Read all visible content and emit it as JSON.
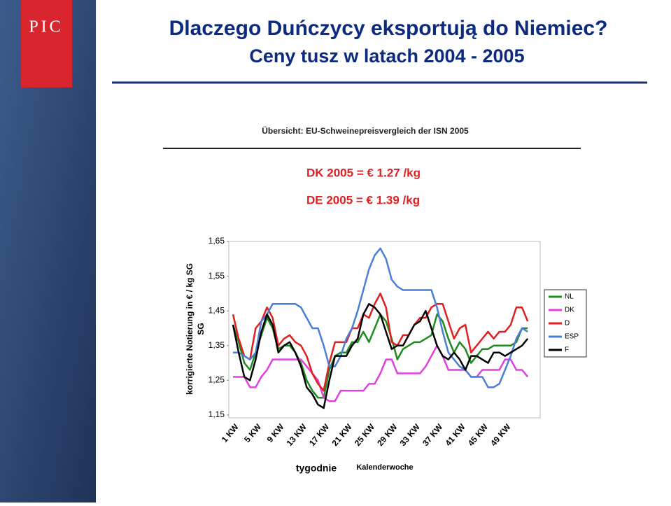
{
  "slide": {
    "logo": "PIC",
    "title": "Dlaczego Duńczycy eksportują do Niemiec?",
    "subtitle": "Ceny tusz w latach 2004 - 2005"
  },
  "chart_data": {
    "type": "line",
    "title": "Übersicht: EU-Schweinepreisvergleich der ISN 2005",
    "annotations": [
      "DK 2005 = € 1.27 /kg",
      "DE 2005 = € 1.39 /kg"
    ],
    "y_label": "korrigierte Notierung in € / kg SG",
    "y_label_2": "SG",
    "x_label": "Kalenderwoche",
    "x_label_pl": "tygodnie",
    "categories": [
      "1 KW",
      null,
      null,
      null,
      "5 KW",
      null,
      null,
      null,
      "9 KW",
      null,
      null,
      null,
      "13 KW",
      null,
      null,
      null,
      "17 KW",
      null,
      null,
      null,
      "21 KW",
      null,
      null,
      null,
      "25 KW",
      null,
      null,
      null,
      "29 KW",
      null,
      null,
      null,
      "33 KW",
      null,
      null,
      null,
      "37 KW",
      null,
      null,
      null,
      "41 KW",
      null,
      null,
      null,
      "45 KW",
      null,
      null,
      null,
      "49 KW",
      null,
      null,
      null,
      null
    ],
    "ylim": [
      1.15,
      1.65
    ],
    "yticks": [
      {
        "value": 1.15,
        "label": "1,15"
      },
      {
        "value": 1.25,
        "label": "1,25"
      },
      {
        "value": 1.35,
        "label": "1,35"
      },
      {
        "value": 1.45,
        "label": "1,45"
      },
      {
        "value": 1.55,
        "label": "1,55"
      },
      {
        "value": 1.65,
        "label": "1,65"
      }
    ],
    "grid": false,
    "legend": "right",
    "series": [
      {
        "name": "NL",
        "color": "#1e8c1e",
        "values": [
          1.41,
          1.36,
          1.3,
          1.28,
          1.33,
          1.38,
          1.43,
          1.4,
          1.34,
          1.35,
          1.35,
          1.33,
          1.3,
          1.25,
          1.22,
          1.2,
          1.2,
          1.28,
          1.32,
          1.33,
          1.33,
          1.36,
          1.36,
          1.39,
          1.36,
          1.4,
          1.44,
          1.42,
          1.37,
          1.31,
          1.34,
          1.35,
          1.36,
          1.36,
          1.37,
          1.38,
          1.44,
          1.42,
          1.37,
          1.33,
          1.36,
          1.34,
          1.3,
          1.32,
          1.34,
          1.34,
          1.35,
          1.35,
          1.35,
          1.35,
          1.36,
          1.4,
          1.4
        ]
      },
      {
        "name": "DK",
        "color": "#e040e0",
        "values": [
          1.26,
          1.26,
          1.26,
          1.23,
          1.23,
          1.26,
          1.28,
          1.31,
          1.31,
          1.31,
          1.31,
          1.31,
          1.31,
          1.29,
          1.27,
          1.25,
          1.2,
          1.19,
          1.19,
          1.22,
          1.22,
          1.22,
          1.22,
          1.22,
          1.24,
          1.24,
          1.27,
          1.31,
          1.31,
          1.27,
          1.27,
          1.27,
          1.27,
          1.27,
          1.29,
          1.32,
          1.35,
          1.32,
          1.28,
          1.28,
          1.28,
          1.28,
          1.26,
          1.26,
          1.28,
          1.28,
          1.28,
          1.28,
          1.31,
          1.31,
          1.28,
          1.28,
          1.26
        ]
      },
      {
        "name": "D",
        "color": "#e02020",
        "values": [
          1.44,
          1.37,
          1.32,
          1.31,
          1.4,
          1.42,
          1.46,
          1.43,
          1.35,
          1.37,
          1.38,
          1.36,
          1.35,
          1.32,
          1.27,
          1.24,
          1.22,
          1.3,
          1.36,
          1.36,
          1.36,
          1.4,
          1.4,
          1.44,
          1.43,
          1.47,
          1.5,
          1.46,
          1.36,
          1.35,
          1.38,
          1.38,
          1.41,
          1.43,
          1.43,
          1.46,
          1.47,
          1.47,
          1.42,
          1.37,
          1.4,
          1.41,
          1.33,
          1.35,
          1.37,
          1.39,
          1.37,
          1.39,
          1.39,
          1.41,
          1.46,
          1.46,
          1.42
        ]
      },
      {
        "name": "ESP",
        "color": "#4a7fd8",
        "values": [
          1.33,
          1.33,
          1.32,
          1.31,
          1.33,
          1.42,
          1.44,
          1.47,
          1.47,
          1.47,
          1.47,
          1.47,
          1.46,
          1.43,
          1.4,
          1.4,
          1.35,
          1.29,
          1.29,
          1.32,
          1.37,
          1.4,
          1.45,
          1.51,
          1.57,
          1.61,
          1.63,
          1.6,
          1.54,
          1.52,
          1.51,
          1.51,
          1.51,
          1.51,
          1.51,
          1.51,
          1.46,
          1.39,
          1.33,
          1.31,
          1.29,
          1.28,
          1.26,
          1.26,
          1.26,
          1.23,
          1.23,
          1.24,
          1.28,
          1.32,
          1.37,
          1.4,
          1.39
        ]
      },
      {
        "name": "F",
        "color": "#000000",
        "values": [
          1.41,
          1.33,
          1.26,
          1.25,
          1.31,
          1.39,
          1.44,
          1.41,
          1.33,
          1.35,
          1.36,
          1.33,
          1.29,
          1.23,
          1.21,
          1.18,
          1.17,
          1.25,
          1.32,
          1.32,
          1.32,
          1.35,
          1.37,
          1.44,
          1.47,
          1.46,
          1.44,
          1.39,
          1.34,
          1.35,
          1.35,
          1.38,
          1.41,
          1.42,
          1.45,
          1.4,
          1.35,
          1.32,
          1.31,
          1.33,
          1.31,
          1.28,
          1.32,
          1.32,
          1.31,
          1.3,
          1.33,
          1.33,
          1.32,
          1.33,
          1.34,
          1.35,
          1.37
        ]
      }
    ]
  }
}
